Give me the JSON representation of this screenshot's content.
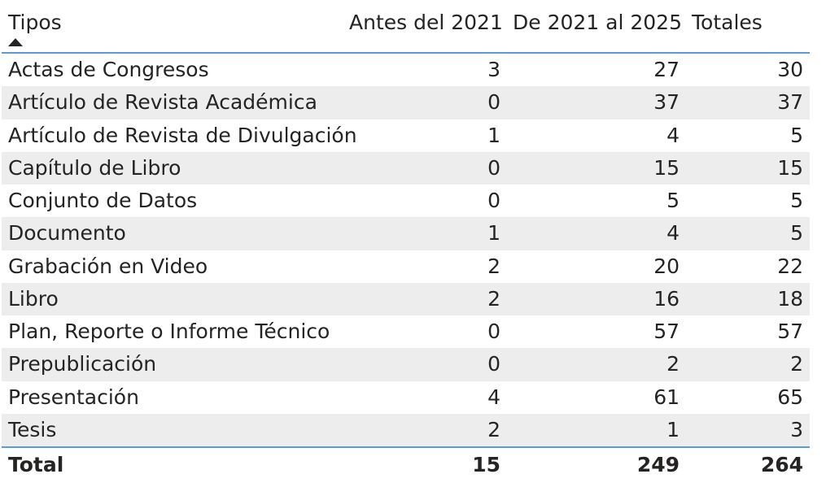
{
  "table": {
    "columns": [
      "Tipos",
      "Antes del 2021",
      "De 2021 al 2025",
      "Totales"
    ],
    "sort_icon": "triangle-up-icon",
    "rows": [
      {
        "tipo": "Actas de Congresos",
        "antes": "3",
        "durante": "27",
        "total": "30"
      },
      {
        "tipo": "Artículo de Revista Académica",
        "antes": "0",
        "durante": "37",
        "total": "37"
      },
      {
        "tipo": "Artículo de Revista de Divulgación",
        "antes": "1",
        "durante": "4",
        "total": "5"
      },
      {
        "tipo": "Capítulo de Libro",
        "antes": "0",
        "durante": "15",
        "total": "15"
      },
      {
        "tipo": "Conjunto de Datos",
        "antes": "0",
        "durante": "5",
        "total": "5"
      },
      {
        "tipo": "Documento",
        "antes": "1",
        "durante": "4",
        "total": "5"
      },
      {
        "tipo": "Grabación en Video",
        "antes": "2",
        "durante": "20",
        "total": "22"
      },
      {
        "tipo": "Libro",
        "antes": "2",
        "durante": "16",
        "total": "18"
      },
      {
        "tipo": "Plan, Reporte o Informe Técnico",
        "antes": "0",
        "durante": "57",
        "total": "57"
      },
      {
        "tipo": "Prepublicación",
        "antes": "0",
        "durante": "2",
        "total": "2"
      },
      {
        "tipo": "Presentación",
        "antes": "4",
        "durante": "61",
        "total": "65"
      },
      {
        "tipo": "Tesis",
        "antes": "2",
        "durante": "1",
        "total": "3"
      }
    ],
    "total": {
      "label": "Total",
      "antes": "15",
      "durante": "249",
      "total": "264"
    },
    "colors": {
      "accent_line": "#5b9bd5",
      "alt_row_bg": "#ededed",
      "text": "#252423"
    }
  }
}
